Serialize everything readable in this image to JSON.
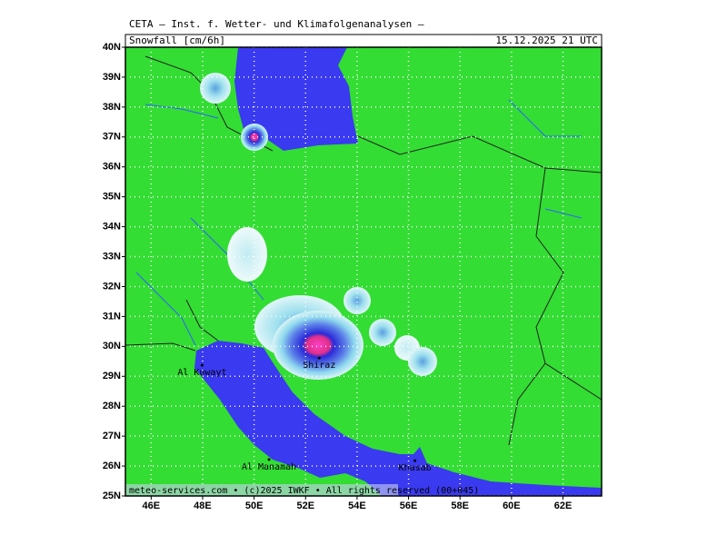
{
  "header": {
    "title": "CETA — Inst. f. Wetter- und Klimafolgenanalysen —",
    "field": "Snowfall [cm/6h]",
    "valid_time": "15.12.2025 21 UTC"
  },
  "map": {
    "lonlim": [
      45,
      63.5
    ],
    "latlim": [
      25,
      40
    ],
    "lonticks": [
      {
        "value": 46,
        "label": "46E"
      },
      {
        "value": 48,
        "label": "48E"
      },
      {
        "value": 50,
        "label": "50E"
      },
      {
        "value": 52,
        "label": "52E"
      },
      {
        "value": 54,
        "label": "54E"
      },
      {
        "value": 56,
        "label": "56E"
      },
      {
        "value": 58,
        "label": "58E"
      },
      {
        "value": 60,
        "label": "60E"
      },
      {
        "value": 62,
        "label": "62E"
      }
    ],
    "latticks": [
      {
        "value": 25,
        "label": "25N"
      },
      {
        "value": 26,
        "label": "26N"
      },
      {
        "value": 27,
        "label": "27N"
      },
      {
        "value": 28,
        "label": "28N"
      },
      {
        "value": 29,
        "label": "29N"
      },
      {
        "value": 30,
        "label": "30N"
      },
      {
        "value": 31,
        "label": "31N"
      },
      {
        "value": 32,
        "label": "32N"
      },
      {
        "value": 33,
        "label": "33N"
      },
      {
        "value": 34,
        "label": "34N"
      },
      {
        "value": 35,
        "label": "35N"
      },
      {
        "value": 36,
        "label": "36N"
      },
      {
        "value": 37,
        "label": "37N"
      },
      {
        "value": 38,
        "label": "38N"
      },
      {
        "value": 39,
        "label": "39N"
      },
      {
        "value": 40,
        "label": "40N"
      }
    ],
    "places": [
      {
        "name": "Al Kuwayt",
        "lon": 47.98,
        "lat": 29.37
      },
      {
        "name": "Shiraz",
        "lon": 52.53,
        "lat": 29.61
      },
      {
        "name": "Al Manamah",
        "lon": 50.58,
        "lat": 26.22
      },
      {
        "name": "Khasab",
        "lon": 56.25,
        "lat": 26.18
      }
    ]
  },
  "footer": "meteo-services.com • (c)2025 IWKF • All rights reserved (00+045)"
}
